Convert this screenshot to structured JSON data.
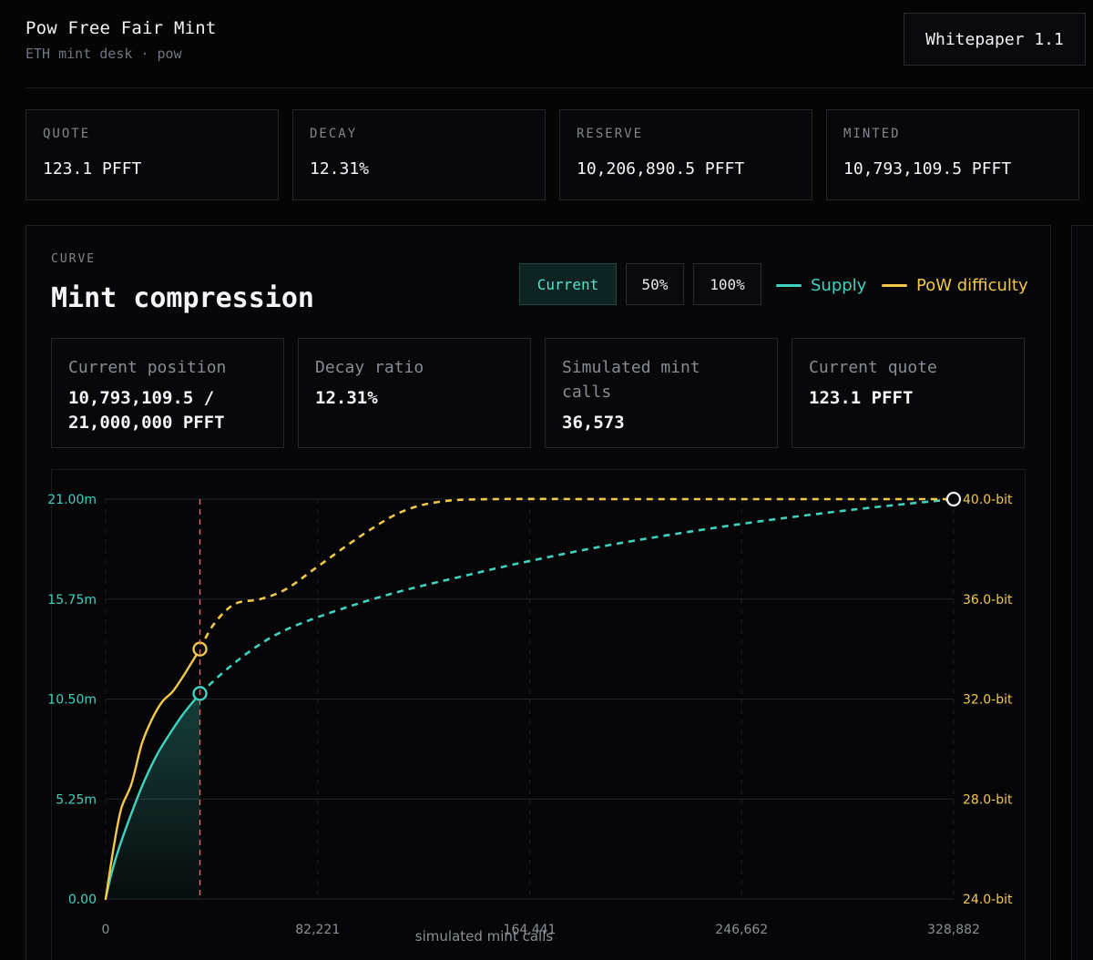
{
  "header": {
    "title": "Pow Free Fair Mint",
    "subtitle": "ETH mint desk · pow",
    "whitepaper_label": "Whitepaper 1.1"
  },
  "stats": [
    {
      "label": "QUOTE",
      "value": "123.1 PFFT"
    },
    {
      "label": "DECAY",
      "value": "12.31%"
    },
    {
      "label": "RESERVE",
      "value": "10,206,890.5 PFFT"
    },
    {
      "label": "MINTED",
      "value": "10,793,109.5 PFFT"
    }
  ],
  "curve": {
    "section_label": "CURVE",
    "title": "Mint compression",
    "buttons": [
      {
        "label": "Current",
        "active": true
      },
      {
        "label": "50%",
        "active": false
      },
      {
        "label": "100%",
        "active": false
      }
    ],
    "legend": [
      {
        "label": "Supply",
        "color": "#3fd3bf"
      },
      {
        "label": "PoW difficulty",
        "color": "#f2c84b"
      }
    ],
    "metrics": [
      {
        "label": "Current position",
        "value": "10,793,109.5 / 21,000,000 PFFT"
      },
      {
        "label": "Decay ratio",
        "value": "12.31%"
      },
      {
        "label": "Simulated mint calls",
        "value": "36,573"
      },
      {
        "label": "Current quote",
        "value": "123.1 PFFT"
      }
    ]
  },
  "chart_data": {
    "type": "line",
    "xlabel": "simulated mint calls",
    "x_ticks": [
      "0",
      "82,221",
      "164,441",
      "246,662",
      "328,882"
    ],
    "y_left_ticks": [
      "0.00",
      "5.25m",
      "10.50m",
      "15.75m",
      "21.00m"
    ],
    "y_right_ticks": [
      "24.0-bit",
      "28.0-bit",
      "32.0-bit",
      "36.0-bit",
      "40.0-bit"
    ],
    "xlim": [
      0,
      328882
    ],
    "ylim_left": [
      0,
      21000000
    ],
    "ylim_right": [
      24,
      40
    ],
    "current_x": 36573,
    "series": [
      {
        "name": "Supply",
        "axis": "left",
        "color": "#3fd3bf",
        "points": [
          [
            0,
            0
          ],
          [
            2000,
            1200000
          ],
          [
            5000,
            2600000
          ],
          [
            10000,
            4500000
          ],
          [
            15000,
            6200000
          ],
          [
            20000,
            7600000
          ],
          [
            25000,
            8700000
          ],
          [
            30000,
            9700000
          ],
          [
            36573,
            10793109
          ],
          [
            50000,
            12400000
          ],
          [
            65000,
            13800000
          ],
          [
            82221,
            14800000
          ],
          [
            110000,
            16000000
          ],
          [
            140000,
            17000000
          ],
          [
            164441,
            17750000
          ],
          [
            200000,
            18700000
          ],
          [
            246662,
            19700000
          ],
          [
            290000,
            20450000
          ],
          [
            328882,
            21000000
          ]
        ]
      },
      {
        "name": "PoW difficulty",
        "axis": "right",
        "color": "#f2c84b",
        "points": [
          [
            0,
            24.0
          ],
          [
            3000,
            26.0
          ],
          [
            6000,
            27.6
          ],
          [
            10000,
            28.6
          ],
          [
            14000,
            30.2
          ],
          [
            18000,
            31.2
          ],
          [
            22000,
            31.9
          ],
          [
            26000,
            32.3
          ],
          [
            30000,
            32.9
          ],
          [
            36573,
            34.0
          ],
          [
            42000,
            35.0
          ],
          [
            50000,
            35.8
          ],
          [
            60000,
            36.0
          ],
          [
            70000,
            36.4
          ],
          [
            82221,
            37.3
          ],
          [
            100000,
            38.6
          ],
          [
            115000,
            39.5
          ],
          [
            130000,
            39.9
          ],
          [
            150000,
            40.0
          ],
          [
            200000,
            40.0
          ],
          [
            260000,
            40.0
          ],
          [
            328882,
            40.0
          ]
        ]
      }
    ]
  }
}
